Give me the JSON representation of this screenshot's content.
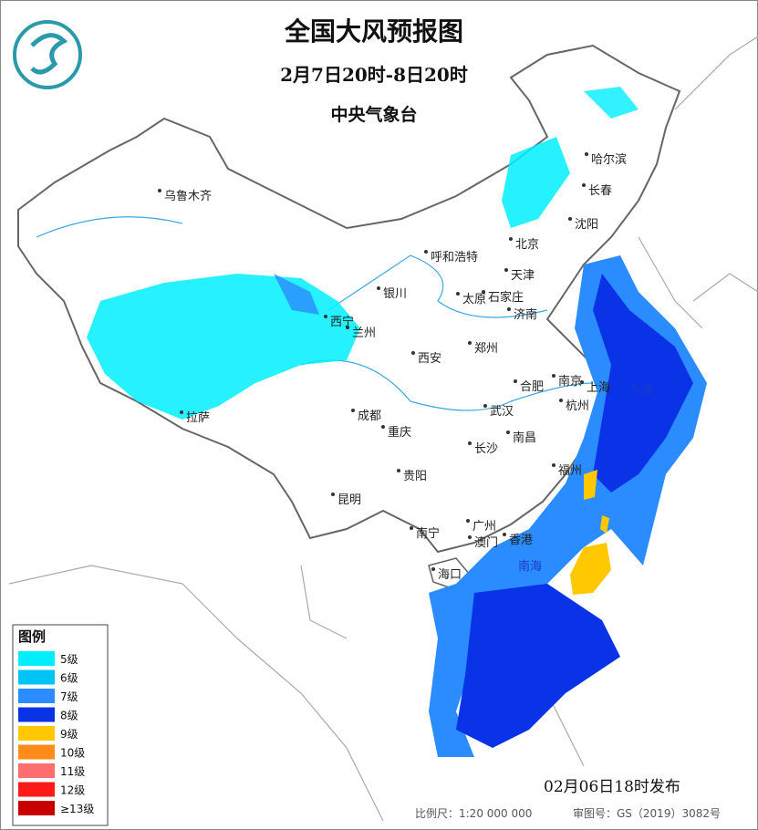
{
  "header": {
    "title": "全国大风预报图",
    "period": "2月7日20时-8日20时",
    "issuer": "中央气象台"
  },
  "legend": {
    "title": "图例",
    "items": [
      {
        "label": "5级",
        "color": "#00eeff"
      },
      {
        "label": "6级",
        "color": "#00c4f5"
      },
      {
        "label": "7级",
        "color": "#2a8cff"
      },
      {
        "label": "8级",
        "color": "#0a32e6"
      },
      {
        "label": "9级",
        "color": "#ffc800"
      },
      {
        "label": "10级",
        "color": "#ff8c1a"
      },
      {
        "label": "11级",
        "color": "#ff6e6e"
      },
      {
        "label": "12级",
        "color": "#ff1a1a"
      },
      {
        "label": "≥13级",
        "color": "#c80000"
      }
    ]
  },
  "cities": [
    "乌鲁木齐",
    "西宁",
    "兰州",
    "银川",
    "呼和浩特",
    "北京",
    "天津",
    "石家庄",
    "太原",
    "济南",
    "郑州",
    "西安",
    "南京",
    "合肥",
    "上海",
    "杭州",
    "武汉",
    "成都",
    "重庆",
    "长沙",
    "南昌",
    "拉萨",
    "贵阳",
    "昆明",
    "福州",
    "南宁",
    "广州",
    "澳门",
    "香港",
    "海口",
    "哈尔滨",
    "长春",
    "沈阳"
  ],
  "seas": [
    "东海",
    "南海"
  ],
  "issued": "02月06日18时发布",
  "footer": {
    "scale": "比例尺：1:20 000 000",
    "approval": "审图号：GS（2019）3082号"
  }
}
